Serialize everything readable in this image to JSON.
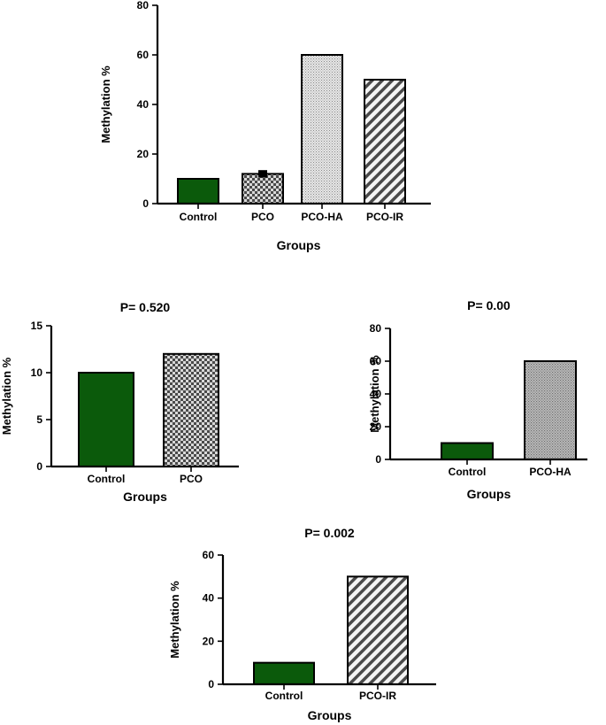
{
  "colors": {
    "control": "#0b5a0b",
    "axis": "#000000"
  },
  "chart_data": [
    {
      "type": "bar",
      "title": "",
      "xlabel": "Groups",
      "ylabel": "Methylation %",
      "categories": [
        "Control",
        "PCO",
        "PCO-HA",
        "PCO-IR"
      ],
      "values": [
        10,
        12,
        60,
        50
      ],
      "error": [
        0,
        1.5,
        0,
        0
      ],
      "patterns": [
        "solid-green",
        "checker",
        "dots",
        "diagonal-stripes"
      ],
      "ylim": [
        0,
        80
      ],
      "yticks": [
        "0",
        "20",
        "40",
        "60",
        "80"
      ],
      "ytick_values": [
        0,
        20,
        40,
        60,
        80
      ]
    },
    {
      "type": "bar",
      "title": "P= 0.520",
      "xlabel": "Groups",
      "ylabel": "Methylation %",
      "categories": [
        "Control",
        "PCO"
      ],
      "values": [
        10,
        12
      ],
      "patterns": [
        "solid-green",
        "checker"
      ],
      "ylim": [
        0,
        15
      ],
      "yticks": [
        "0",
        "5",
        "10",
        "15"
      ],
      "ytick_values": [
        0,
        5,
        10,
        15
      ]
    },
    {
      "type": "bar",
      "title": "P= 0.00",
      "xlabel": "Groups",
      "ylabel": "Methylation %",
      "categories": [
        "Control",
        "PCO-HA"
      ],
      "values": [
        10,
        60
      ],
      "patterns": [
        "solid-green",
        "dots"
      ],
      "ylim": [
        0,
        80
      ],
      "yticks": [
        "0",
        "20",
        "40",
        "60",
        "80"
      ],
      "ytick_values": [
        0,
        20,
        40,
        60,
        80
      ]
    },
    {
      "type": "bar",
      "title": "P= 0.002",
      "xlabel": "Groups",
      "ylabel": "Methylation %",
      "categories": [
        "Control",
        "PCO-IR"
      ],
      "values": [
        10,
        50
      ],
      "patterns": [
        "solid-green",
        "diagonal-stripes"
      ],
      "ylim": [
        0,
        60
      ],
      "yticks": [
        "0",
        "20",
        "40",
        "60"
      ],
      "ytick_values": [
        0,
        20,
        40,
        60
      ]
    }
  ]
}
